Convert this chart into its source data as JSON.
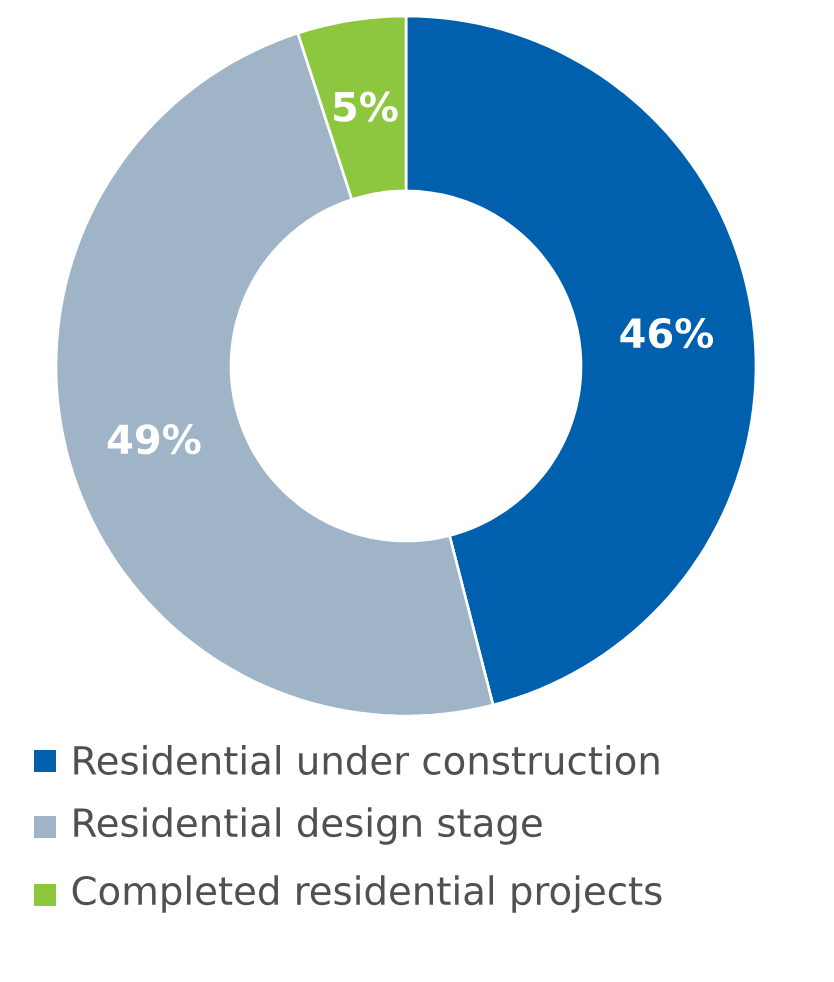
{
  "chart_data": {
    "type": "donut",
    "categories": [
      "Residential under construction",
      "Residential design stage",
      "Completed residential projects"
    ],
    "values": [
      46,
      49,
      5
    ],
    "colors": [
      "#0060ae",
      "#9fb4c7",
      "#8dc63f"
    ],
    "value_labels": [
      "46%",
      "49%",
      "5%"
    ],
    "legend": "bottom"
  }
}
